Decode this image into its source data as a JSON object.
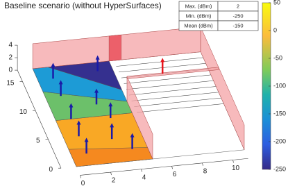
{
  "chart_data": {
    "type": "surface3d",
    "title": "Baseline scenario (without HyperSurfaces)",
    "xlim": [
      0,
      10
    ],
    "xticks": [
      0,
      2,
      4,
      6,
      8,
      10
    ],
    "ylim": [
      0,
      15
    ],
    "yticks": [
      0,
      5,
      10,
      15
    ],
    "zlim": [
      0,
      4
    ],
    "zticks": [
      0,
      2,
      4
    ],
    "clim": [
      -250,
      50
    ],
    "cticks": [
      50,
      0,
      -50,
      -100,
      -150,
      -200,
      -250
    ]
  },
  "table": {
    "rows": [
      [
        "Max. (dBm)",
        "2"
      ],
      [
        "Min. (dBm)",
        "-250"
      ],
      [
        "Mean (dBm)",
        "-150"
      ]
    ]
  }
}
